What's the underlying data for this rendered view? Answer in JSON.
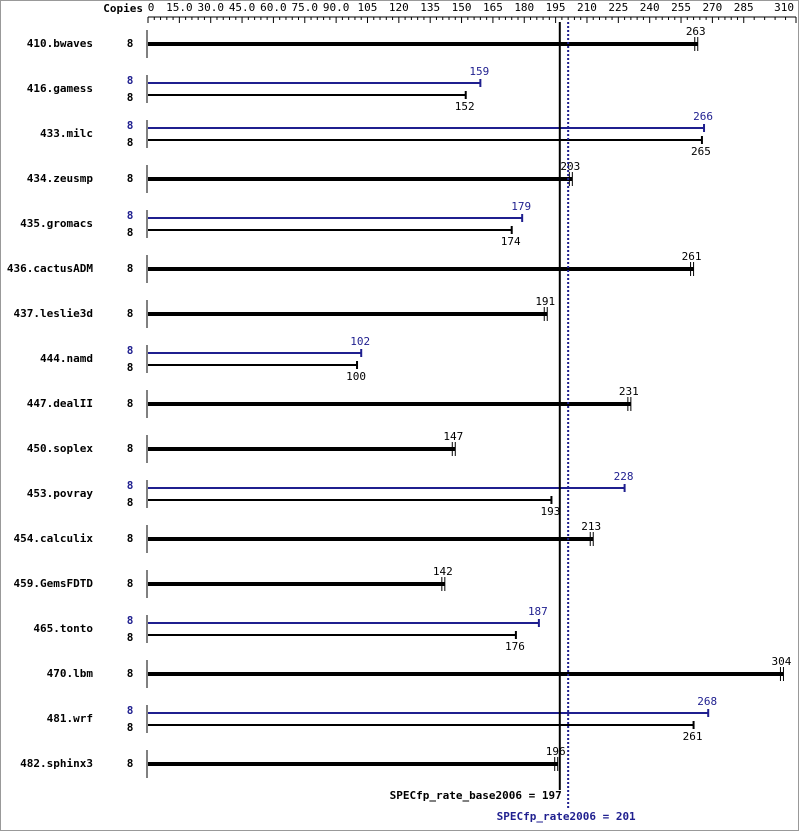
{
  "chart_data": {
    "type": "bar",
    "orientation": "horizontal",
    "copies_header": "Copies",
    "xlim": [
      0,
      310
    ],
    "xticks": [
      0,
      {
        "value": 15,
        "label": "15.0"
      },
      {
        "value": 30,
        "label": "30.0"
      },
      {
        "value": 45,
        "label": "45.0"
      },
      {
        "value": 60,
        "label": "60.0"
      },
      {
        "value": 75,
        "label": "75.0"
      },
      {
        "value": 90,
        "label": "90.0"
      },
      105,
      120,
      135,
      150,
      165,
      180,
      195,
      210,
      225,
      240,
      255,
      270,
      285,
      310
    ],
    "categories": [
      "410.bwaves",
      "416.gamess",
      "433.milc",
      "434.zeusmp",
      "435.gromacs",
      "436.cactusADM",
      "437.leslie3d",
      "444.namd",
      "447.dealII",
      "450.soplex",
      "453.povray",
      "454.calculix",
      "459.GemsFDTD",
      "465.tonto",
      "470.lbm",
      "481.wrf",
      "482.sphinx3"
    ],
    "series": [
      {
        "color": "#000000",
        "copies": [
          8,
          8,
          8,
          8,
          8,
          8,
          8,
          8,
          8,
          8,
          8,
          8,
          8,
          8,
          8,
          8,
          8
        ],
        "values": [
          263,
          152,
          265,
          203,
          174,
          261,
          191,
          100,
          231,
          147,
          193,
          213,
          142,
          176,
          304,
          261,
          196
        ]
      },
      {
        "color": "#1f1f8f",
        "copies": [
          null,
          8,
          8,
          null,
          8,
          null,
          null,
          8,
          null,
          null,
          8,
          null,
          null,
          8,
          null,
          8,
          null
        ],
        "values": [
          null,
          159,
          266,
          null,
          179,
          null,
          null,
          102,
          null,
          null,
          228,
          null,
          null,
          187,
          null,
          268,
          null
        ]
      }
    ],
    "reference_lines": [
      {
        "label": "SPECfp_rate_base2006 = 197",
        "value": 197,
        "color": "#000000",
        "style": "solid"
      },
      {
        "label": "SPECfp_rate2006 = 201",
        "value": 201,
        "color": "#1f1f8f",
        "style": "dotted"
      }
    ]
  }
}
